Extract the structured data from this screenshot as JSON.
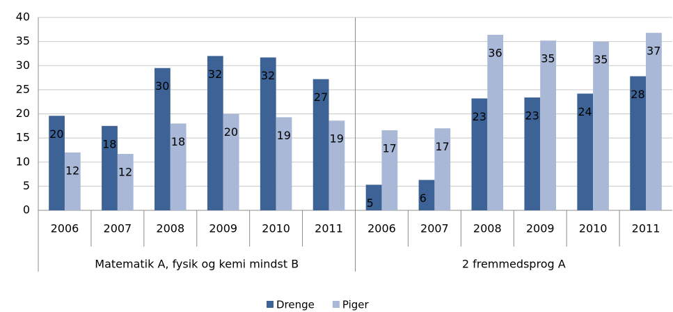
{
  "chart_data": {
    "type": "bar",
    "groups": [
      {
        "label": "Matematik A, fysik og kemi mindst B",
        "categories": [
          "2006",
          "2007",
          "2008",
          "2009",
          "2010",
          "2011"
        ]
      },
      {
        "label": "2 fremmedsprog A",
        "categories": [
          "2006",
          "2007",
          "2008",
          "2009",
          "2010",
          "2011"
        ]
      }
    ],
    "series": [
      {
        "name": "Drenge",
        "color": "#3d6396",
        "values": [
          19.6,
          17.5,
          29.5,
          32.0,
          31.7,
          27.2,
          5.3,
          6.3,
          23.2,
          23.4,
          24.2,
          27.8
        ],
        "value_labels": [
          "20",
          "18",
          "30",
          "32",
          "32",
          "27",
          "5",
          "6",
          "23",
          "23",
          "24",
          "28"
        ]
      },
      {
        "name": "Piger",
        "color": "#a9b8d6",
        "values": [
          12.0,
          11.7,
          18.0,
          20.0,
          19.3,
          18.6,
          16.6,
          17.0,
          36.4,
          35.2,
          35.0,
          36.8
        ],
        "value_labels": [
          "12",
          "12",
          "18",
          "20",
          "19",
          "19",
          "17",
          "17",
          "36",
          "35",
          "35",
          "37"
        ]
      }
    ],
    "ylim": [
      0,
      40
    ],
    "yticks": [
      0,
      5,
      10,
      15,
      20,
      25,
      30,
      35,
      40
    ],
    "grid": true,
    "legend": "bottom"
  }
}
